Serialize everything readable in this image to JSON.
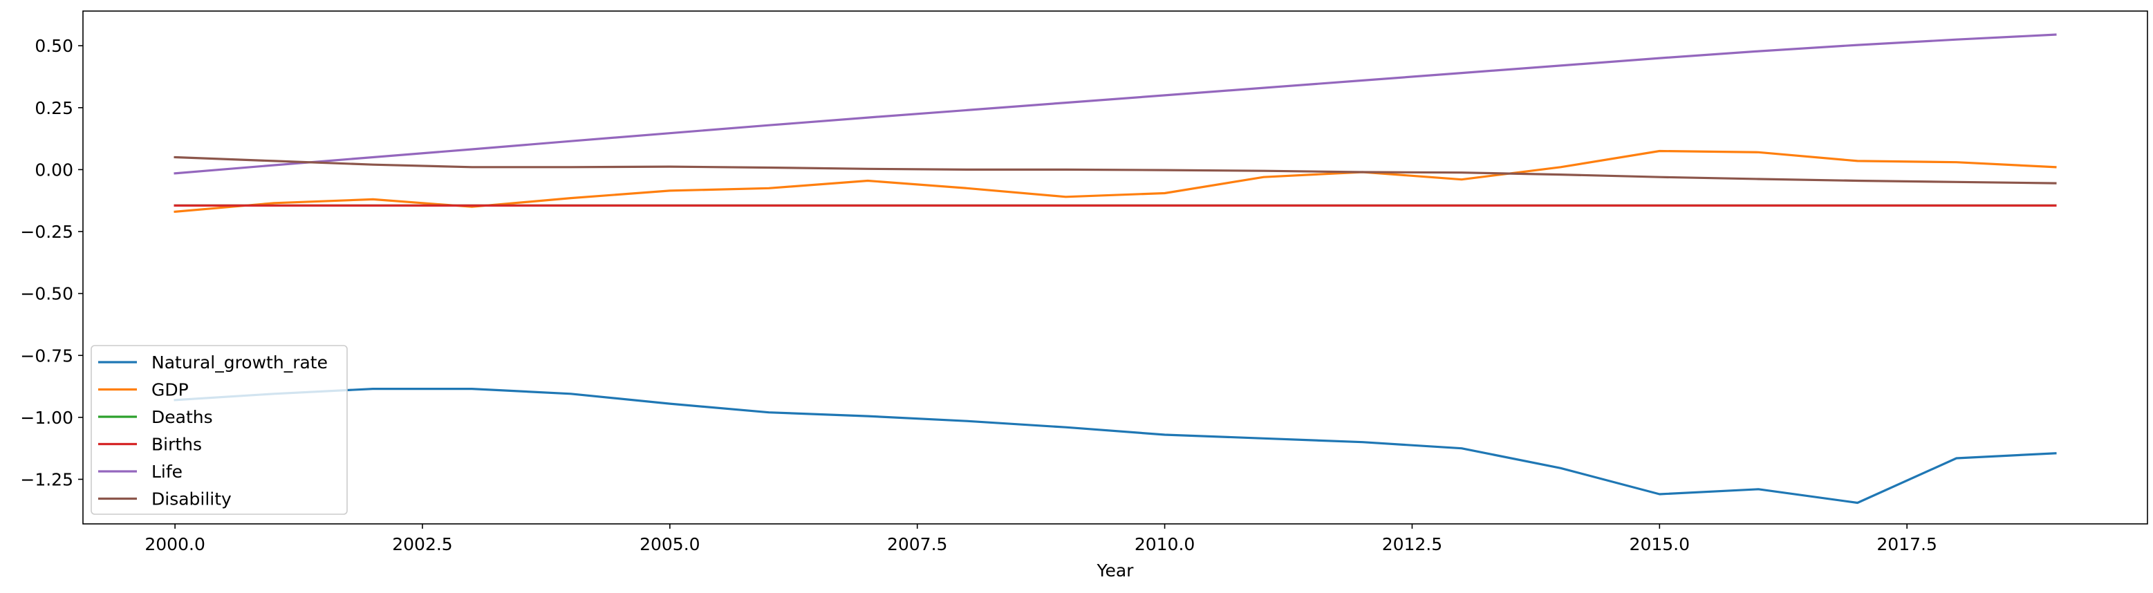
{
  "chart_data": {
    "type": "line",
    "title": "",
    "xlabel": "Year",
    "ylabel": "",
    "xlim": [
      1999.07,
      2019.93
    ],
    "ylim": [
      -1.43,
      0.64
    ],
    "x_ticks": [
      2000.0,
      2002.5,
      2005.0,
      2007.5,
      2010.0,
      2012.5,
      2015.0,
      2017.5
    ],
    "x_tick_labels": [
      "2000.0",
      "2002.5",
      "2005.0",
      "2007.5",
      "2010.0",
      "2012.5",
      "2015.0",
      "2017.5"
    ],
    "y_ticks": [
      0.5,
      0.25,
      0.0,
      -0.25,
      -0.5,
      -0.75,
      -1.0,
      -1.25
    ],
    "y_tick_labels": [
      "0.50",
      "0.25",
      "0.00",
      "−0.25",
      "−0.50",
      "−0.75",
      "−1.00",
      "−1.25"
    ],
    "grid": false,
    "legend_position": "lower-left",
    "x": [
      2000,
      2001,
      2002,
      2003,
      2004,
      2005,
      2006,
      2007,
      2008,
      2009,
      2010,
      2011,
      2012,
      2013,
      2014,
      2015,
      2016,
      2017,
      2018,
      2019
    ],
    "series": [
      {
        "name": "Natural_growth_rate",
        "color": "#1f77b4",
        "values": [
          -0.93,
          -0.905,
          -0.885,
          -0.885,
          -0.905,
          -0.945,
          -0.98,
          -0.995,
          -1.015,
          -1.04,
          -1.07,
          -1.085,
          -1.1,
          -1.125,
          -1.205,
          -1.31,
          -1.29,
          -1.345,
          -1.165,
          -1.145
        ]
      },
      {
        "name": "GDP",
        "color": "#ff7f0e",
        "values": [
          -0.17,
          -0.135,
          -0.12,
          -0.15,
          -0.115,
          -0.085,
          -0.075,
          -0.045,
          -0.075,
          -0.11,
          -0.095,
          -0.03,
          -0.01,
          -0.04,
          0.01,
          0.075,
          0.07,
          0.035,
          0.03,
          0.01
        ]
      },
      {
        "name": "Deaths",
        "color": "#2ca02c",
        "values": [
          -0.145,
          -0.145,
          -0.145,
          -0.145,
          -0.145,
          -0.145,
          -0.145,
          -0.145,
          -0.145,
          -0.145,
          -0.145,
          -0.145,
          -0.145,
          -0.145,
          -0.145,
          -0.145,
          -0.145,
          -0.145,
          -0.145,
          -0.145
        ]
      },
      {
        "name": "Births",
        "color": "#d62728",
        "values": [
          -0.145,
          -0.145,
          -0.145,
          -0.145,
          -0.145,
          -0.145,
          -0.145,
          -0.145,
          -0.145,
          -0.145,
          -0.145,
          -0.145,
          -0.145,
          -0.145,
          -0.145,
          -0.145,
          -0.145,
          -0.145,
          -0.145,
          -0.145
        ]
      },
      {
        "name": "Life",
        "color": "#9467bd",
        "values": [
          -0.015,
          0.018,
          0.05,
          0.082,
          0.115,
          0.147,
          0.179,
          0.21,
          0.24,
          0.27,
          0.3,
          0.33,
          0.36,
          0.39,
          0.42,
          0.45,
          0.478,
          0.503,
          0.525,
          0.545
        ]
      },
      {
        "name": "Disability",
        "color": "#8c564b",
        "values": [
          0.05,
          0.035,
          0.02,
          0.01,
          0.01,
          0.012,
          0.008,
          0.003,
          0.0,
          0.0,
          -0.002,
          -0.005,
          -0.01,
          -0.012,
          -0.02,
          -0.03,
          -0.038,
          -0.045,
          -0.05,
          -0.055
        ]
      }
    ]
  }
}
